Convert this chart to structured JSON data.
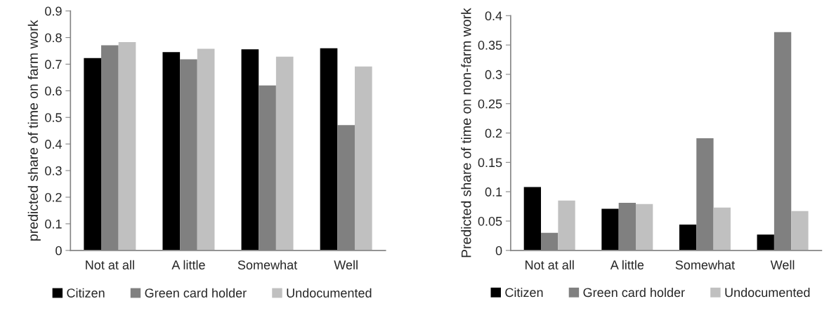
{
  "chart_data": [
    {
      "type": "bar",
      "ylabel": "predicted share of time on farm work",
      "categories": [
        "Not at all",
        "A little",
        "Somewhat",
        "Well"
      ],
      "series": [
        {
          "name": "Citizen",
          "color": "#000000",
          "values": [
            0.723,
            0.745,
            0.756,
            0.76
          ]
        },
        {
          "name": "Green card holder",
          "color": "#808080",
          "values": [
            0.771,
            0.718,
            0.62,
            0.471
          ]
        },
        {
          "name": "Undocumented",
          "color": "#c0c0c0",
          "values": [
            0.783,
            0.758,
            0.728,
            0.691
          ]
        }
      ],
      "ylim": [
        0,
        0.9
      ],
      "yticks": [
        {
          "value": 0,
          "label": "0"
        },
        0.1,
        0.2,
        0.3,
        0.4,
        0.5,
        0.6,
        0.7,
        0.8,
        0.9
      ],
      "grid": false,
      "legend": "bottom"
    },
    {
      "type": "bar",
      "ylabel": "Predicted share of time on non-farm work",
      "categories": [
        "Not at all",
        "A little",
        "Somewhat",
        "Well"
      ],
      "series": [
        {
          "name": "Citizen",
          "color": "#000000",
          "values": [
            0.108,
            0.071,
            0.044,
            0.027
          ]
        },
        {
          "name": "Green card holder",
          "color": "#808080",
          "values": [
            0.03,
            0.081,
            0.191,
            0.372
          ]
        },
        {
          "name": "Undocumented",
          "color": "#c0c0c0",
          "values": [
            0.085,
            0.079,
            0.073,
            0.067
          ]
        }
      ],
      "ylim": [
        0,
        0.4
      ],
      "yticks": [
        {
          "value": 0,
          "label": "0"
        },
        0.05,
        0.1,
        0.15,
        0.2,
        0.25,
        0.3,
        0.35,
        0.4
      ],
      "grid": false,
      "legend": "bottom"
    }
  ]
}
